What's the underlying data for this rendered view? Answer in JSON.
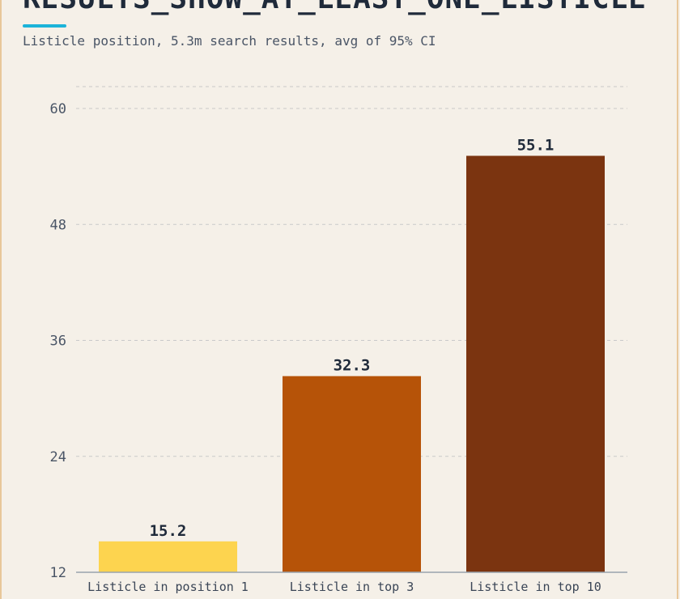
{
  "header": {
    "title": "RESULTS_SHOW_AT_LEAST_ONE_LISTICLE",
    "subtitle": "Listicle position, 5.3m search results, avg of 95% CI"
  },
  "chart_data": {
    "type": "bar",
    "title": "RESULTS_SHOW_AT_LEAST_ONE_LISTICLE",
    "subtitle": "Listicle position, 5.3m search results, avg of 95% CI",
    "xlabel": "",
    "ylabel": "",
    "categories": [
      "Listicle in position 1",
      "Listicle in top 3",
      "Listicle in top 10"
    ],
    "values": [
      15.2,
      32.3,
      55.1
    ],
    "value_labels": [
      "15.2",
      "32.3",
      "55.1"
    ],
    "colors": [
      "#fdd44f",
      "#b65308",
      "#7b3410"
    ],
    "ylim": [
      12,
      60
    ],
    "yticks": [
      12,
      24,
      36,
      48,
      60
    ],
    "ytick_labels": [
      "12",
      "24",
      "36",
      "48",
      "60"
    ],
    "grid": true,
    "legend": "none"
  }
}
